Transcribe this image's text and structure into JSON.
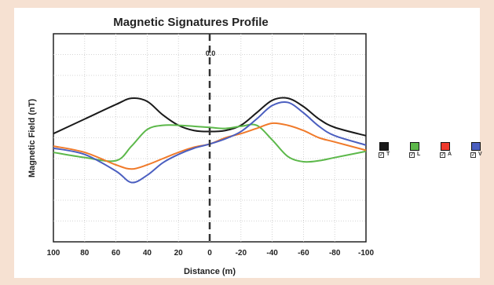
{
  "chart_data": {
    "type": "line",
    "title": "Magnetic Signatures Profile",
    "xlabel": "Distance (m)",
    "ylabel": "Magnetic Field (nT)",
    "xlim": [
      100,
      -100
    ],
    "ylim": [
      0,
      10
    ],
    "x_reversed": true,
    "x_ticks": [
      100,
      80,
      60,
      40,
      20,
      0,
      -20,
      -40,
      -60,
      -80,
      -100
    ],
    "x_tick_labels": [
      "100",
      "80",
      "60",
      "40",
      "20",
      "0",
      "-20",
      "-40",
      "-60",
      "-80",
      "-100"
    ],
    "grid": true,
    "annotation": {
      "text": "0.0",
      "x": 0
    },
    "series": [
      {
        "name": "T",
        "color": "#1a1a1a",
        "x": [
          100,
          80,
          60,
          50,
          40,
          30,
          20,
          10,
          0,
          -10,
          -20,
          -30,
          -40,
          -50,
          -60,
          -70,
          -80,
          -100
        ],
        "y": [
          5.2,
          5.9,
          6.6,
          6.9,
          6.75,
          6.1,
          5.6,
          5.35,
          5.3,
          5.35,
          5.6,
          6.2,
          6.8,
          6.9,
          6.5,
          5.9,
          5.5,
          5.1
        ]
      },
      {
        "name": "L",
        "color": "#5cb84a",
        "x": [
          100,
          80,
          60,
          50,
          40,
          30,
          20,
          10,
          0,
          -10,
          -20,
          -30,
          -40,
          -50,
          -60,
          -70,
          -80,
          -100
        ],
        "y": [
          4.3,
          4.05,
          3.9,
          4.6,
          5.4,
          5.6,
          5.6,
          5.55,
          5.5,
          5.45,
          5.55,
          5.6,
          4.9,
          4.1,
          3.85,
          3.9,
          4.05,
          4.35
        ]
      },
      {
        "name": "A",
        "color": "#f07a2a",
        "x": [
          100,
          80,
          60,
          50,
          40,
          30,
          20,
          10,
          0,
          -10,
          -20,
          -30,
          -40,
          -50,
          -60,
          -70,
          -80,
          -100
        ],
        "y": [
          4.6,
          4.3,
          3.7,
          3.5,
          3.7,
          4.0,
          4.3,
          4.55,
          4.7,
          5.0,
          5.2,
          5.45,
          5.7,
          5.6,
          5.35,
          5.0,
          4.8,
          4.4
        ]
      },
      {
        "name": "V",
        "color": "#4b5fc0",
        "x": [
          100,
          80,
          60,
          50,
          40,
          30,
          20,
          10,
          0,
          -10,
          -20,
          -30,
          -40,
          -50,
          -60,
          -70,
          -80,
          -100
        ],
        "y": [
          4.5,
          4.2,
          3.4,
          2.85,
          3.2,
          3.8,
          4.2,
          4.5,
          4.7,
          4.95,
          5.3,
          5.9,
          6.55,
          6.7,
          6.2,
          5.55,
          5.1,
          4.65
        ]
      }
    ]
  },
  "legend": {
    "items": [
      {
        "label": "T",
        "color": "#1a1a1a",
        "checked": "☑"
      },
      {
        "label": "L",
        "color": "#5cb84a",
        "checked": "☑"
      },
      {
        "label": "A",
        "color": "#ef3a2e",
        "checked": "☑"
      },
      {
        "label": "V",
        "color": "#4b5fc0",
        "checked": "☑"
      }
    ]
  }
}
